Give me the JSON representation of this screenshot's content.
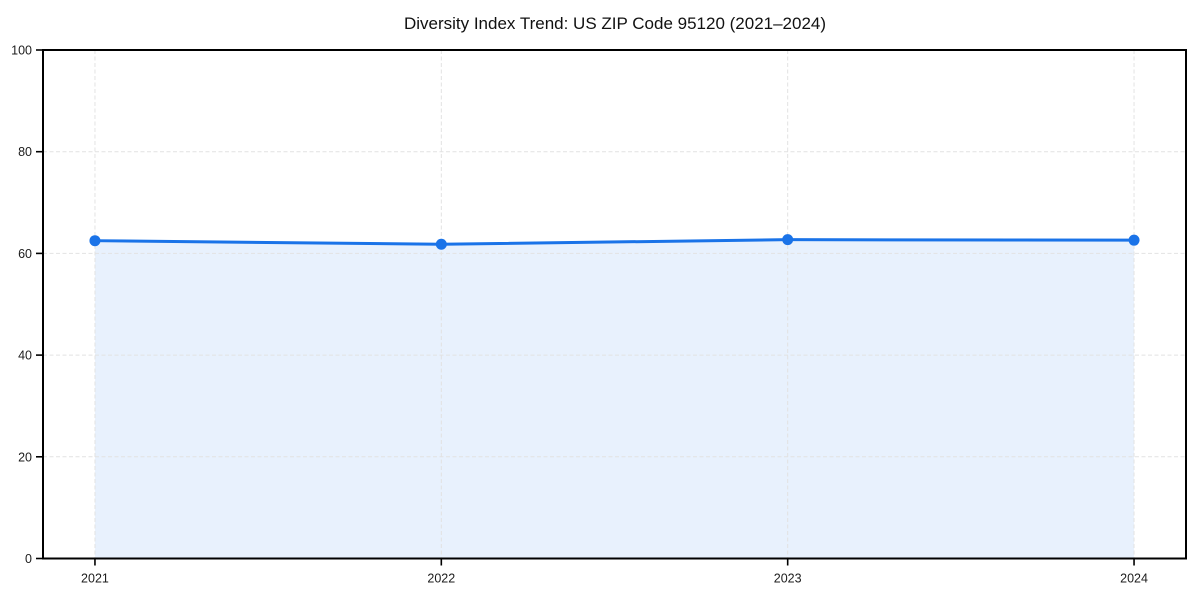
{
  "page": {
    "background": "#ffffff"
  },
  "chart_data": {
    "type": "area",
    "title": "Diversity Index Trend: US ZIP Code 95120 (2021–2024)",
    "categories": [
      "2021",
      "2022",
      "2023",
      "2024"
    ],
    "series": [
      {
        "name": "Diversity Index",
        "values": [
          62.5,
          61.8,
          62.7,
          62.6
        ]
      }
    ],
    "xlabel": "",
    "ylabel": "",
    "ylim": [
      0,
      100
    ],
    "yticks": [
      0,
      20,
      40,
      60,
      80,
      100
    ],
    "grid": true,
    "grid_style": "dashed",
    "legend": false,
    "colors": {
      "line": "#1a73e8",
      "marker": "#1a73e8",
      "fill": "#1a73e8",
      "grid": "#e2e2e2",
      "spine": "#000000",
      "tick_label": "#1c1c1c",
      "title": "#111111"
    },
    "fill_opacity": 0.1,
    "marker_shape": "circle"
  }
}
